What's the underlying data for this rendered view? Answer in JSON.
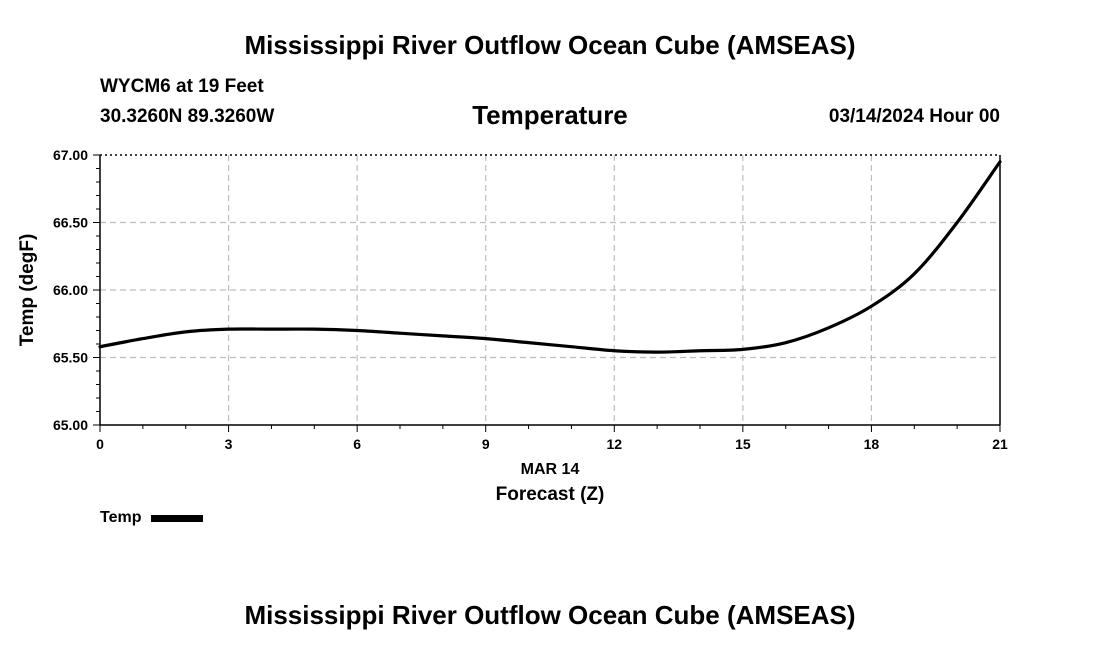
{
  "header": {
    "title": "Mississippi River Outflow Ocean Cube (AMSEAS)",
    "station": "WYCM6 at 19 Feet",
    "coordinates": "30.3260N  89.3260W",
    "parameter": "Temperature",
    "datetime": "03/14/2024 Hour 00"
  },
  "footer": {
    "title": "Mississippi River Outflow Ocean Cube (AMSEAS)"
  },
  "chart_data": {
    "type": "line",
    "title": "Temperature",
    "xlabel": "Forecast (Z)",
    "xsublabel": "MAR 14",
    "ylabel": "Temp (degF)",
    "xlim": [
      0,
      21
    ],
    "ylim": [
      65.0,
      67.0
    ],
    "x_ticks": [
      0,
      3,
      6,
      9,
      12,
      15,
      18,
      21
    ],
    "x_tick_labels": [
      "0",
      "3",
      "6",
      "9",
      "12",
      "15",
      "18",
      "21"
    ],
    "y_ticks": [
      65.0,
      65.5,
      66.0,
      66.5,
      67.0
    ],
    "y_tick_labels": [
      "65.00",
      "65.50",
      "66.00",
      "66.50",
      "67.00"
    ],
    "grid": true,
    "legend_position": "bottom-left",
    "series": [
      {
        "name": "Temp",
        "color": "#000000",
        "x": [
          0,
          1,
          2,
          3,
          4,
          5,
          6,
          7,
          8,
          9,
          10,
          11,
          12,
          13,
          14,
          15,
          16,
          17,
          18,
          19,
          20,
          21
        ],
        "y": [
          65.58,
          65.64,
          65.69,
          65.71,
          65.71,
          65.71,
          65.7,
          65.68,
          65.66,
          65.64,
          65.61,
          65.58,
          65.55,
          65.54,
          65.55,
          65.56,
          65.61,
          65.72,
          65.88,
          66.12,
          66.5,
          66.95
        ]
      }
    ]
  }
}
